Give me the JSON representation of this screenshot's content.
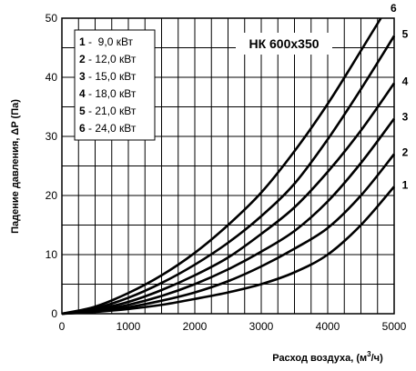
{
  "chart_data": {
    "type": "line",
    "title": "НК 600x350",
    "xlabel": "Расход воздуха, (м",
    "xlabel_sup": "3",
    "xlabel_tail": "/ч)",
    "ylabel": "Падение давления, ΔP (Па)",
    "xlim": [
      0,
      5000
    ],
    "ylim": [
      0,
      50
    ],
    "x_ticks": [
      "0",
      "1000",
      "2000",
      "3000",
      "4000",
      "5000"
    ],
    "y_ticks": [
      "0",
      "10",
      "20",
      "30",
      "40",
      "50"
    ],
    "grid": true,
    "legend": [
      {
        "num": "1",
        "text": " -  9,0 кВт"
      },
      {
        "num": "2",
        "text": " - 12,0 кВт"
      },
      {
        "num": "3",
        "text": " - 15,0 кВт"
      },
      {
        "num": "4",
        "text": " - 18,0 кВт"
      },
      {
        "num": "5",
        "text": " - 21,0 кВт"
      },
      {
        "num": "6",
        "text": " - 24,0 кВт"
      }
    ],
    "series": [
      {
        "label": "1",
        "x": [
          0,
          500,
          1000,
          1500,
          2000,
          2500,
          3000,
          3500,
          4000,
          4500,
          5000
        ],
        "y": [
          0,
          0.3,
          0.8,
          1.5,
          2.5,
          3.6,
          5.0,
          7.0,
          10.0,
          15.0,
          21.5
        ]
      },
      {
        "label": "2",
        "x": [
          0,
          500,
          1000,
          1500,
          2000,
          2500,
          3000,
          3500,
          4000,
          4500,
          5000
        ],
        "y": [
          0,
          0.4,
          1.1,
          2.2,
          3.6,
          5.5,
          8.0,
          11.0,
          14.5,
          20.0,
          27.0
        ]
      },
      {
        "label": "3",
        "x": [
          0,
          500,
          1000,
          1500,
          2000,
          2500,
          3000,
          3500,
          4000,
          4500,
          5000
        ],
        "y": [
          0,
          0.5,
          1.5,
          3.0,
          5.0,
          7.5,
          10.5,
          14.0,
          19.0,
          25.5,
          33.0
        ]
      },
      {
        "label": "4",
        "x": [
          0,
          500,
          1000,
          1500,
          2000,
          2500,
          3000,
          3500,
          4000,
          4500,
          5000
        ],
        "y": [
          0,
          0.7,
          2.0,
          4.0,
          6.5,
          9.5,
          13.5,
          18.0,
          24.0,
          31.0,
          39.0
        ]
      },
      {
        "label": "5",
        "x": [
          0,
          500,
          1000,
          1500,
          2000,
          2500,
          3000,
          3500,
          4000,
          4500,
          5000
        ],
        "y": [
          0,
          0.9,
          2.7,
          5.2,
          8.3,
          12.0,
          16.5,
          22.0,
          29.5,
          38.0,
          47.0
        ]
      },
      {
        "label": "6",
        "x": [
          0,
          500,
          1000,
          1500,
          2000,
          2500,
          3000,
          3500,
          4000,
          4500,
          4800
        ],
        "y": [
          0,
          1.2,
          3.5,
          6.5,
          10.3,
          15.0,
          20.5,
          27.5,
          35.5,
          44.5,
          50.0
        ]
      }
    ]
  }
}
